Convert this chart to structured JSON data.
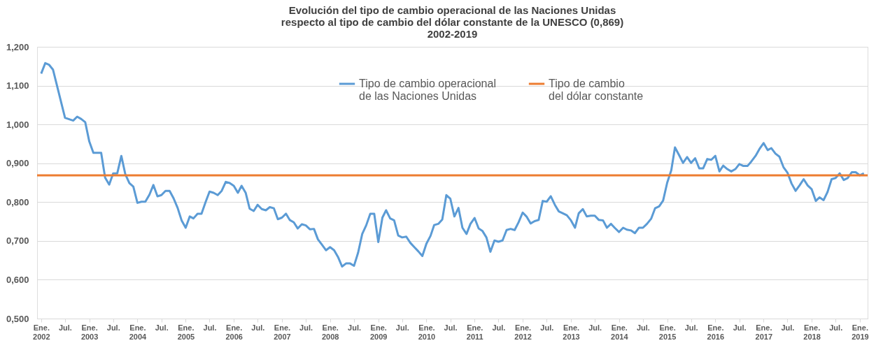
{
  "chart_data": {
    "type": "line",
    "title": "Evolución del tipo de cambio operacional de las Naciones Unidas respecto al tipo de cambio del dólar constante de la UNESCO (0,869) 2002-2019",
    "x": [
      "2002-01",
      "2002-02",
      "2002-03",
      "2002-04",
      "2002-07",
      "2002-09",
      "2002-10",
      "2002-11",
      "2002-12",
      "2003-01",
      "2003-02",
      "2003-04",
      "2003-05",
      "2003-06",
      "2003-07",
      "2003-08",
      "2003-09",
      "2003-10",
      "2003-11",
      "2003-12",
      "2004-01",
      "2004-02",
      "2004-03",
      "2004-04",
      "2004-05",
      "2004-06",
      "2004-07",
      "2004-08",
      "2004-09",
      "2004-10",
      "2004-11",
      "2004-12",
      "2005-01",
      "2005-02",
      "2005-03",
      "2005-04",
      "2005-05",
      "2005-06",
      "2005-07",
      "2005-08",
      "2005-09",
      "2005-10",
      "2005-11",
      "2005-12",
      "2006-01",
      "2006-02",
      "2006-03",
      "2006-04",
      "2006-05",
      "2006-06",
      "2006-07",
      "2006-08",
      "2006-09",
      "2006-10",
      "2006-11",
      "2006-12",
      "2007-01",
      "2007-02",
      "2007-03",
      "2007-04",
      "2007-05",
      "2007-06",
      "2007-07",
      "2007-08",
      "2007-09",
      "2007-10",
      "2007-11",
      "2007-12",
      "2008-01",
      "2008-02",
      "2008-03",
      "2008-04",
      "2008-05",
      "2008-06",
      "2008-07",
      "2008-08",
      "2008-09",
      "2008-10",
      "2008-11",
      "2008-12",
      "2009-01",
      "2009-02",
      "2009-03",
      "2009-04",
      "2009-05",
      "2009-06",
      "2009-07",
      "2009-08",
      "2009-09",
      "2009-10",
      "2009-11",
      "2009-12",
      "2010-01",
      "2010-02",
      "2010-03",
      "2010-04",
      "2010-05",
      "2010-06",
      "2010-07",
      "2010-08",
      "2010-09",
      "2010-10",
      "2010-11",
      "2010-12",
      "2011-01",
      "2011-02",
      "2011-03",
      "2011-04",
      "2011-05",
      "2011-06",
      "2011-07",
      "2011-08",
      "2011-09",
      "2011-10",
      "2011-11",
      "2011-12",
      "2012-01",
      "2012-02",
      "2012-03",
      "2012-04",
      "2012-05",
      "2012-06",
      "2012-07",
      "2012-08",
      "2012-09",
      "2012-10",
      "2012-11",
      "2012-12",
      "2013-01",
      "2013-02",
      "2013-03",
      "2013-04",
      "2013-05",
      "2013-06",
      "2013-07",
      "2013-08",
      "2013-09",
      "2013-10",
      "2013-11",
      "2013-12",
      "2014-01",
      "2014-02",
      "2014-03",
      "2014-04",
      "2014-05",
      "2014-06",
      "2014-07",
      "2014-08",
      "2014-09",
      "2014-10",
      "2014-11",
      "2014-12",
      "2015-01",
      "2015-02",
      "2015-03",
      "2015-04",
      "2015-05",
      "2015-06",
      "2015-07",
      "2015-08",
      "2015-09",
      "2015-10",
      "2015-11",
      "2015-12",
      "2016-01",
      "2016-02",
      "2016-03",
      "2016-04",
      "2016-05",
      "2016-06",
      "2016-07",
      "2016-08",
      "2016-09",
      "2016-10",
      "2016-11",
      "2016-12",
      "2017-01",
      "2017-02",
      "2017-03",
      "2017-04",
      "2017-05",
      "2017-06",
      "2017-07",
      "2017-08",
      "2017-09",
      "2017-10",
      "2017-11",
      "2017-12",
      "2018-01",
      "2018-02",
      "2018-03",
      "2018-04",
      "2018-05",
      "2018-06",
      "2018-07",
      "2018-08",
      "2018-09",
      "2018-10",
      "2018-11",
      "2018-12",
      "2019-01",
      "2019-02"
    ],
    "series": [
      {
        "name": "Tipo de cambio operacional de las Naciones Unidas",
        "color": "#5b9bd5",
        "values": [
          1.131,
          1.158,
          1.154,
          1.141,
          1.017,
          1.01,
          1.02,
          1.014,
          1.006,
          0.956,
          0.927,
          0.927,
          0.863,
          0.845,
          0.874,
          0.874,
          0.919,
          0.872,
          0.849,
          0.84,
          0.798,
          0.801,
          0.801,
          0.819,
          0.844,
          0.815,
          0.818,
          0.829,
          0.829,
          0.81,
          0.785,
          0.753,
          0.734,
          0.763,
          0.758,
          0.77,
          0.77,
          0.8,
          0.827,
          0.824,
          0.818,
          0.829,
          0.852,
          0.849,
          0.842,
          0.824,
          0.842,
          0.824,
          0.783,
          0.777,
          0.793,
          0.782,
          0.779,
          0.787,
          0.784,
          0.756,
          0.76,
          0.77,
          0.754,
          0.748,
          0.732,
          0.743,
          0.74,
          0.73,
          0.731,
          0.704,
          0.69,
          0.676,
          0.684,
          0.676,
          0.659,
          0.634,
          0.642,
          0.642,
          0.636,
          0.67,
          0.718,
          0.74,
          0.77,
          0.77,
          0.697,
          0.76,
          0.779,
          0.758,
          0.753,
          0.714,
          0.709,
          0.711,
          0.695,
          0.684,
          0.673,
          0.661,
          0.693,
          0.713,
          0.741,
          0.744,
          0.755,
          0.818,
          0.809,
          0.763,
          0.785,
          0.734,
          0.718,
          0.744,
          0.759,
          0.732,
          0.726,
          0.709,
          0.672,
          0.701,
          0.698,
          0.701,
          0.728,
          0.731,
          0.728,
          0.748,
          0.773,
          0.762,
          0.745,
          0.751,
          0.754,
          0.803,
          0.801,
          0.815,
          0.793,
          0.776,
          0.771,
          0.766,
          0.753,
          0.734,
          0.771,
          0.782,
          0.763,
          0.765,
          0.765,
          0.754,
          0.753,
          0.734,
          0.744,
          0.733,
          0.723,
          0.734,
          0.729,
          0.727,
          0.72,
          0.734,
          0.734,
          0.744,
          0.757,
          0.784,
          0.789,
          0.804,
          0.85,
          0.882,
          0.941,
          0.921,
          0.901,
          0.916,
          0.901,
          0.913,
          0.887,
          0.887,
          0.911,
          0.909,
          0.919,
          0.879,
          0.894,
          0.885,
          0.879,
          0.885,
          0.898,
          0.893,
          0.893,
          0.905,
          0.919,
          0.937,
          0.952,
          0.934,
          0.939,
          0.925,
          0.917,
          0.89,
          0.876,
          0.848,
          0.829,
          0.843,
          0.859,
          0.843,
          0.833,
          0.803,
          0.812,
          0.805,
          0.826,
          0.859,
          0.862,
          0.874,
          0.857,
          0.862,
          0.877,
          0.877,
          0.869,
          0.874
        ]
      }
    ],
    "ref_lines": [
      {
        "axis": "y",
        "value": 0.869,
        "label": "Tipo de cambio del dólar constante",
        "color": "#ed7d31"
      }
    ],
    "xlim": [
      "2001-12",
      "2019-03"
    ],
    "xticks": [
      {
        "value": "2002-01",
        "label": "Ene. 2002"
      },
      {
        "value": "2002-07",
        "label": "Jul."
      },
      {
        "value": "2003-01",
        "label": "Ene. 2003"
      },
      {
        "value": "2003-07",
        "label": "Jul."
      },
      {
        "value": "2004-01",
        "label": "Ene. 2004"
      },
      {
        "value": "2004-07",
        "label": "Jul."
      },
      {
        "value": "2005-01",
        "label": "Ene. 2005"
      },
      {
        "value": "2005-07",
        "label": "Jul."
      },
      {
        "value": "2006-01",
        "label": "Ene. 2006"
      },
      {
        "value": "2006-07",
        "label": "Jul."
      },
      {
        "value": "2007-01",
        "label": "Ene. 2007"
      },
      {
        "value": "2007-07",
        "label": "Jul."
      },
      {
        "value": "2008-01",
        "label": "Ene. 2008"
      },
      {
        "value": "2008-07",
        "label": "Jul."
      },
      {
        "value": "2009-01",
        "label": "Ene. 2009"
      },
      {
        "value": "2009-07",
        "label": "Jul."
      },
      {
        "value": "2010-01",
        "label": "Ene. 2010"
      },
      {
        "value": "2010-07",
        "label": "Jul."
      },
      {
        "value": "2011-01",
        "label": "Ene. 2011"
      },
      {
        "value": "2011-07",
        "label": "Jul."
      },
      {
        "value": "2012-01",
        "label": "Ene. 2012"
      },
      {
        "value": "2012-07",
        "label": "Jul."
      },
      {
        "value": "2013-01",
        "label": "Ene. 2013"
      },
      {
        "value": "2013-07",
        "label": "Jul."
      },
      {
        "value": "2014-01",
        "label": "Ene. 2014"
      },
      {
        "value": "2014-07",
        "label": "Jul."
      },
      {
        "value": "2015-01",
        "label": "Ene. 2015"
      },
      {
        "value": "2015-07",
        "label": "Jul."
      },
      {
        "value": "2016-01",
        "label": "Ene. 2016"
      },
      {
        "value": "2016-07",
        "label": "Jul."
      },
      {
        "value": "2017-01",
        "label": "Ene. 2017"
      },
      {
        "value": "2017-07",
        "label": "Jul."
      },
      {
        "value": "2018-01",
        "label": "Ene. 2018"
      },
      {
        "value": "2018-07",
        "label": "Jul."
      },
      {
        "value": "2019-01",
        "label": "Ene. 2019"
      }
    ],
    "ylim": [
      0.5,
      1.2
    ],
    "yticks": [
      {
        "value": 0.5,
        "label": "0,500"
      },
      {
        "value": 0.6,
        "label": "0,600"
      },
      {
        "value": 0.7,
        "label": "0,700"
      },
      {
        "value": 0.8,
        "label": "0,800"
      },
      {
        "value": 0.9,
        "label": "0,900"
      },
      {
        "value": 1.0,
        "label": "1,000"
      },
      {
        "value": 1.1,
        "label": "1,100"
      },
      {
        "value": 1.2,
        "label": "1,200"
      }
    ],
    "grid": "y",
    "legend": "top",
    "marker": "none",
    "line_style": "solid"
  }
}
